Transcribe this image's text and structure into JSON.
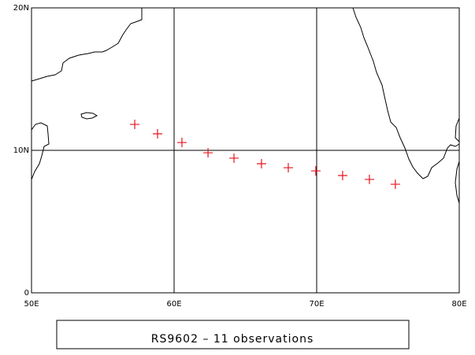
{
  "chart_data": {
    "type": "scatter",
    "title": "RS9602 – 11 observations",
    "x": [
      57.24,
      58.84,
      60.55,
      62.38,
      64.2,
      66.13,
      68.01,
      69.94,
      71.82,
      73.7,
      75.52
    ],
    "values": [
      11.82,
      11.16,
      10.55,
      9.83,
      9.45,
      9.06,
      8.78,
      8.56,
      8.23,
      7.96,
      7.62
    ],
    "color": "#e8141e",
    "xlim": [
      50,
      80
    ],
    "ylim": [
      0,
      20
    ],
    "xticks": [
      {
        "value": 50,
        "label": "50E"
      },
      {
        "value": 60,
        "label": "60E"
      },
      {
        "value": 70,
        "label": "70E"
      },
      {
        "value": 80,
        "label": "80E"
      }
    ],
    "yticks": [
      {
        "value": 0,
        "label": "0"
      },
      {
        "value": 10,
        "label": "10N"
      },
      {
        "value": 20,
        "label": "20N"
      }
    ],
    "grid": true
  }
}
